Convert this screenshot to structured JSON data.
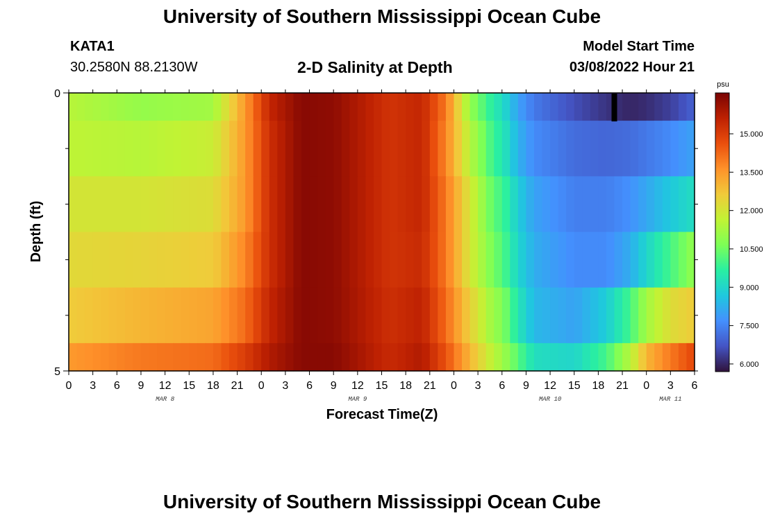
{
  "page": {
    "title": "University of Southern Mississippi Ocean Cube",
    "title_repeat": "University of Southern Mississippi Ocean Cube",
    "station": "KATA1",
    "coordinates": "30.2580N  88.2130W",
    "subtitle": "2-D Salinity at Depth",
    "model_start_label": "Model Start Time",
    "model_start_value": "03/08/2022 Hour 21"
  },
  "chart_data": {
    "type": "heatmap",
    "title": "2-D Salinity at Depth",
    "xlabel": "Forecast Time(Z)",
    "ylabel": "Depth (ft)",
    "y_ticks": [
      "0",
      "5"
    ],
    "ylim": [
      0,
      5
    ],
    "x_tick_labels": [
      "0",
      "3",
      "6",
      "9",
      "12",
      "15",
      "18",
      "21",
      "0",
      "3",
      "6",
      "9",
      "12",
      "15",
      "18",
      "21",
      "0",
      "3",
      "6",
      "9",
      "12",
      "15",
      "18",
      "21",
      "0",
      "3",
      "6"
    ],
    "x_hours": [
      0,
      3,
      6,
      9,
      12,
      15,
      18,
      21,
      24,
      27,
      30,
      33,
      36,
      39,
      42,
      45,
      48,
      51,
      54,
      57,
      60,
      63,
      66,
      69,
      72,
      75,
      78
    ],
    "day_labels": [
      {
        "label": "MAR 8",
        "hour": 12
      },
      {
        "label": "MAR 9",
        "hour": 36
      },
      {
        "label": "MAR 10",
        "hour": 60
      },
      {
        "label": "MAR 11",
        "hour": 75
      }
    ],
    "xlim": [
      0,
      78
    ],
    "colorbar": {
      "unit": "psu",
      "min": 5.7,
      "max": 16.6,
      "tick_labels": [
        "6.000",
        "7.500",
        "9.000",
        "10.500",
        "12.000",
        "13.500",
        "15.000"
      ],
      "ticks": [
        6.0,
        7.5,
        9.0,
        10.5,
        12.0,
        13.5,
        15.0
      ],
      "colors": [
        "#30123b",
        "#4454c4",
        "#4490fe",
        "#1fc8de",
        "#29efa2",
        "#7dff56",
        "#c1f334",
        "#f1ca3a",
        "#fe922a",
        "#ea4f0d",
        "#be2102",
        "#7a0403"
      ]
    },
    "depth_layers": [
      {
        "depth_range": [
          0.0,
          0.5
        ],
        "key_hours": [
          0,
          9,
          18,
          22,
          25,
          29,
          33,
          40,
          44,
          47,
          50,
          53,
          54,
          56,
          58,
          63,
          67,
          70,
          72,
          75,
          78
        ],
        "salinity": [
          11.5,
          11.0,
          11.2,
          13.5,
          15.5,
          16.4,
          16.3,
          15.2,
          15.5,
          14.0,
          11.0,
          9.5,
          9.2,
          8.0,
          7.3,
          6.6,
          6.2,
          6.0,
          6.1,
          6.4,
          6.9
        ]
      },
      {
        "depth_range": [
          0.5,
          1.5
        ],
        "key_hours": [
          0,
          9,
          18,
          22,
          25,
          29,
          33,
          40,
          44,
          47,
          50,
          53,
          54,
          56,
          58,
          63,
          67,
          70,
          72,
          75,
          78
        ],
        "salinity": [
          11.6,
          11.5,
          11.8,
          13.5,
          15.3,
          16.4,
          16.3,
          15.2,
          15.5,
          13.8,
          11.5,
          9.8,
          9.5,
          8.3,
          7.6,
          7.1,
          7.0,
          7.1,
          7.3,
          7.6,
          8.0
        ]
      },
      {
        "depth_range": [
          1.5,
          2.5
        ],
        "key_hours": [
          0,
          9,
          18,
          22,
          25,
          29,
          33,
          40,
          44,
          47,
          50,
          53,
          54,
          56,
          58,
          63,
          67,
          70,
          72,
          75,
          78
        ],
        "salinity": [
          12.0,
          12.0,
          12.2,
          13.5,
          15.3,
          16.4,
          16.3,
          15.2,
          15.5,
          14.0,
          12.0,
          10.2,
          10.0,
          8.8,
          8.0,
          7.4,
          7.4,
          7.7,
          8.1,
          8.7,
          9.2
        ]
      },
      {
        "depth_range": [
          2.5,
          3.5
        ],
        "key_hours": [
          0,
          9,
          18,
          22,
          25,
          29,
          33,
          40,
          44,
          47,
          50,
          53,
          54,
          56,
          58,
          63,
          67,
          70,
          72,
          75,
          78
        ],
        "salinity": [
          12.3,
          12.4,
          12.6,
          13.8,
          15.3,
          16.4,
          16.3,
          15.2,
          15.4,
          14.0,
          12.0,
          10.5,
          10.2,
          9.0,
          8.2,
          7.6,
          7.6,
          8.2,
          9.0,
          10.0,
          11.0
        ]
      },
      {
        "depth_range": [
          3.5,
          4.5
        ],
        "key_hours": [
          0,
          9,
          18,
          22,
          25,
          29,
          33,
          40,
          44,
          47,
          50,
          53,
          54,
          56,
          58,
          63,
          67,
          70,
          72,
          75,
          78
        ],
        "salinity": [
          12.6,
          13.0,
          13.3,
          14.2,
          15.5,
          16.4,
          16.3,
          15.3,
          15.6,
          14.2,
          12.5,
          11.0,
          10.8,
          9.4,
          8.4,
          8.0,
          8.8,
          10.0,
          11.2,
          12.2,
          12.6
        ]
      },
      {
        "depth_range": [
          4.5,
          5.0
        ],
        "key_hours": [
          0,
          9,
          18,
          22,
          25,
          29,
          33,
          40,
          44,
          47,
          50,
          53,
          54,
          56,
          58,
          63,
          67,
          70,
          72,
          75,
          78
        ],
        "salinity": [
          13.5,
          14.0,
          14.2,
          15.0,
          15.8,
          16.4,
          16.4,
          15.4,
          15.8,
          14.6,
          13.0,
          11.5,
          11.2,
          10.2,
          9.2,
          9.0,
          10.0,
          11.5,
          13.0,
          14.0,
          14.8
        ]
      }
    ],
    "current_time_marker": {
      "hour": 68,
      "depth": 0.0,
      "color": "#000000"
    }
  }
}
